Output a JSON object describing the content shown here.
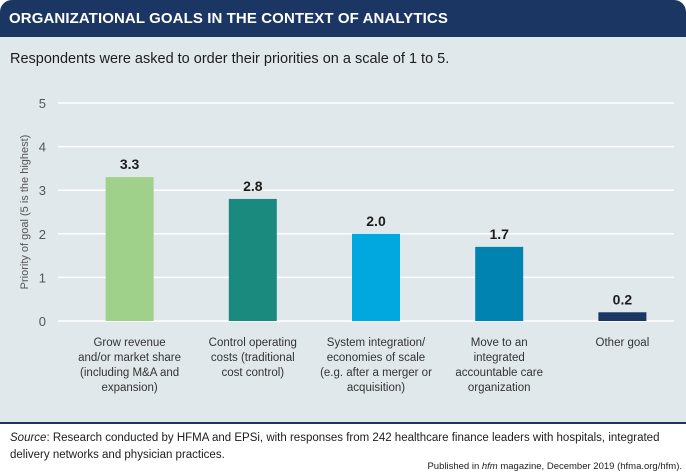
{
  "header": {
    "title": "ORGANIZATIONAL GOALS IN THE CONTEXT OF ANALYTICS"
  },
  "subtitle": "Respondents were asked to order their priorities on a scale of 1 to 5.",
  "chart_data": {
    "type": "bar",
    "title": "ORGANIZATIONAL GOALS IN THE CONTEXT OF ANALYTICS",
    "subtitle": "Respondents were asked to order their priorities on a scale of 1 to 5.",
    "xlabel": "",
    "ylabel": "Priority of goal (5 is the highest)",
    "ylim": [
      0,
      5
    ],
    "yticks": [
      0,
      1,
      2,
      3,
      4,
      5
    ],
    "grid": true,
    "categories": [
      [
        "Grow revenue",
        "and/or market share",
        "(including M&A and",
        "expansion)"
      ],
      [
        "Control operating",
        "costs (traditional",
        "cost control)"
      ],
      [
        "System integration/",
        "economies of scale",
        "(e.g. after a merger or",
        "acquisition)"
      ],
      [
        "Move to an",
        "integrated",
        "accountable care",
        "organization"
      ],
      [
        "Other goal"
      ]
    ],
    "values": [
      3.3,
      2.8,
      2.0,
      1.7,
      0.2
    ],
    "value_labels": [
      "3.3",
      "2.8",
      "2.0",
      "1.7",
      "0.2"
    ],
    "colors": [
      "#9fd18b",
      "#1b8a7e",
      "#00a8e0",
      "#0083b0",
      "#1c3664"
    ]
  },
  "source": {
    "label": "Source",
    "text": ": Research conducted by HFMA and EPSi, with responses from 242 healthcare finance leaders with hospitals, integrated delivery networks and physician practices."
  },
  "published": {
    "prefix": "Published in ",
    "magazine": "hfm",
    "suffix": " magazine, December 2019 (hfma.org/hfm)."
  }
}
